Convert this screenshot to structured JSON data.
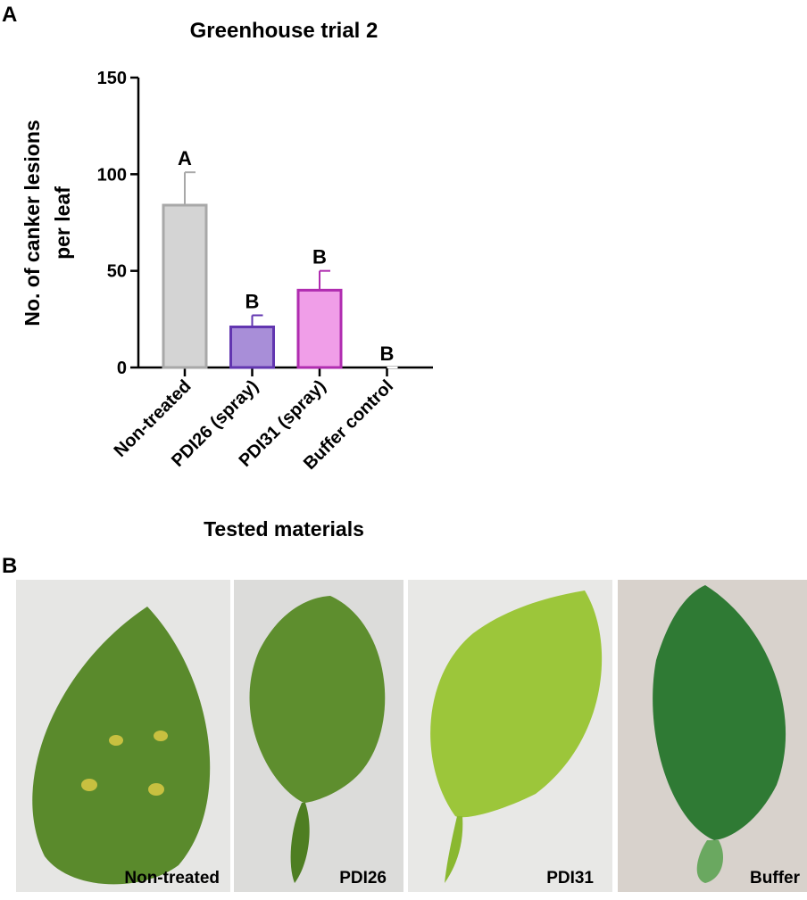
{
  "panel_labels": [
    "A",
    "B"
  ],
  "chart_data": {
    "type": "bar",
    "title": "Greenhouse trial 2",
    "ylabel": [
      "No. of canker lesions",
      "per leaf"
    ],
    "xlabel": "Tested materials",
    "categories": [
      "Non-treated",
      "PDI26 (spray)",
      "PDI31 (spray)",
      "Buffer control"
    ],
    "values": [
      84,
      21,
      40,
      0
    ],
    "errors": [
      17,
      6,
      10,
      0
    ],
    "colors": [
      "#d4d4d4",
      "#a88ed8",
      "#f09ee8",
      "#ffffff"
    ],
    "edge_colors": [
      "#a8a8a8",
      "#6236b0",
      "#b02cb0",
      "#ffffff"
    ],
    "annotations": [
      "A",
      "B",
      "B",
      "B"
    ],
    "ylim": [
      0,
      150
    ],
    "yticks": [
      0,
      50,
      100,
      150
    ]
  },
  "photos": [
    {
      "label": "Non-treated"
    },
    {
      "label": "PDI26"
    },
    {
      "label": "PDI31"
    },
    {
      "label": "Buffer"
    }
  ]
}
